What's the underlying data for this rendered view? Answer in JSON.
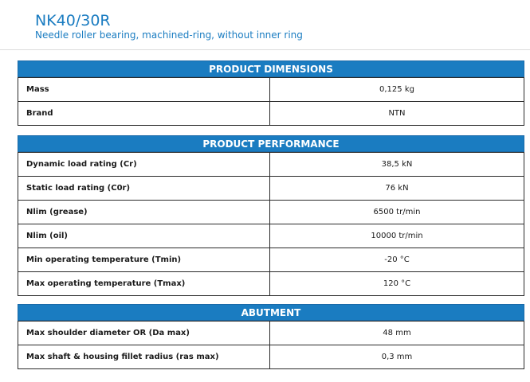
{
  "product": {
    "name": "NK40/30R",
    "description": "Needle roller bearing, machined-ring, without inner ring"
  },
  "sections": [
    {
      "title": "PRODUCT DIMENSIONS",
      "rows": [
        {
          "label": "Mass",
          "value": "0,125 kg"
        },
        {
          "label": "Brand",
          "value": "NTN"
        }
      ]
    },
    {
      "title": "PRODUCT PERFORMANCE",
      "rows": [
        {
          "label": "Dynamic load rating (Cr)",
          "value": "38,5 kN"
        },
        {
          "label": "Static load rating (C0r)",
          "value": "76 kN"
        },
        {
          "label": "Nlim (grease)",
          "value": "6500 tr/min"
        },
        {
          "label": "Nlim (oil)",
          "value": "10000 tr/min"
        },
        {
          "label": "Min operating temperature (Tmin)",
          "value": "-20 °C"
        },
        {
          "label": "Max operating temperature (Tmax)",
          "value": "120 °C"
        }
      ]
    },
    {
      "title": "ABUTMENT",
      "rows": [
        {
          "label": "Max shoulder diameter OR (Da max)",
          "value": "48 mm"
        },
        {
          "label": "Max shaft & housing fillet radius (ras max)",
          "value": "0,3 mm"
        }
      ]
    }
  ],
  "colors": {
    "accent": "#1a7cc1",
    "border": "#2a2a2a"
  }
}
